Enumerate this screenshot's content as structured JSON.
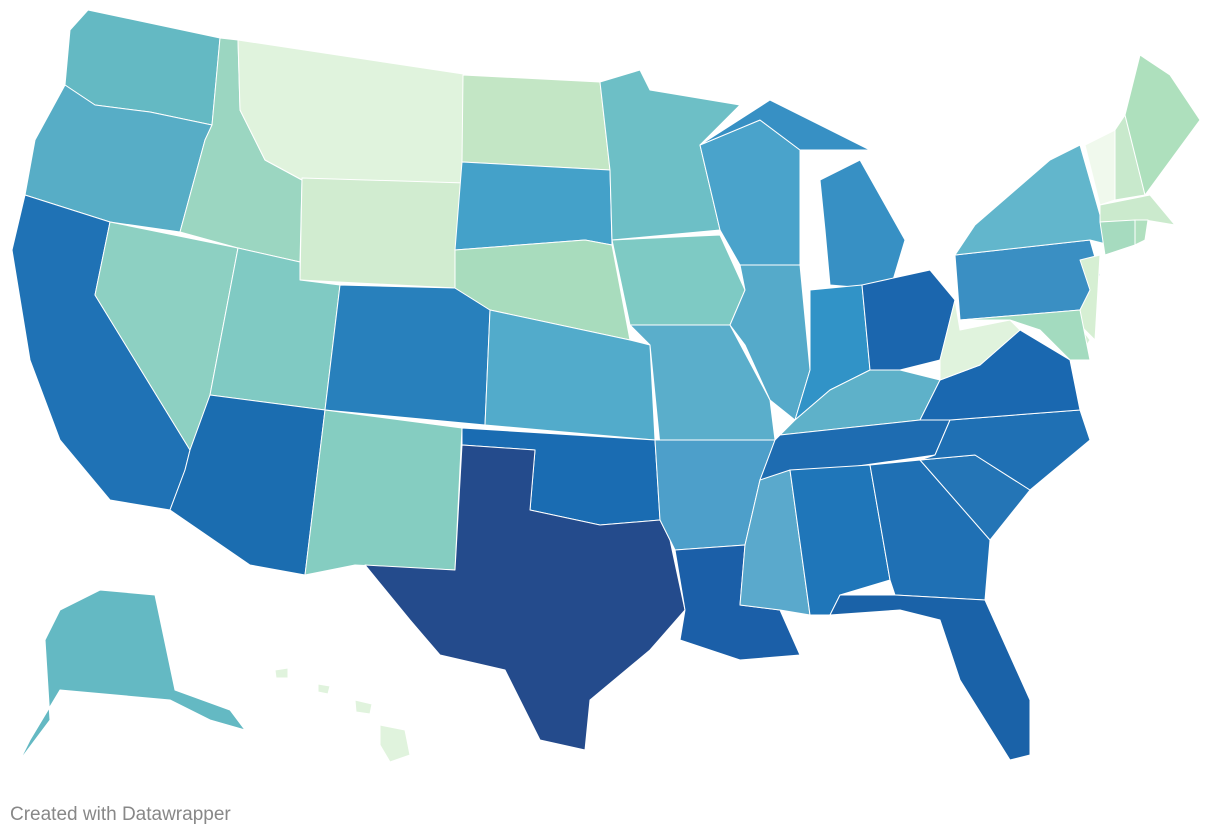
{
  "footer": "Created with Datawrapper"
}
